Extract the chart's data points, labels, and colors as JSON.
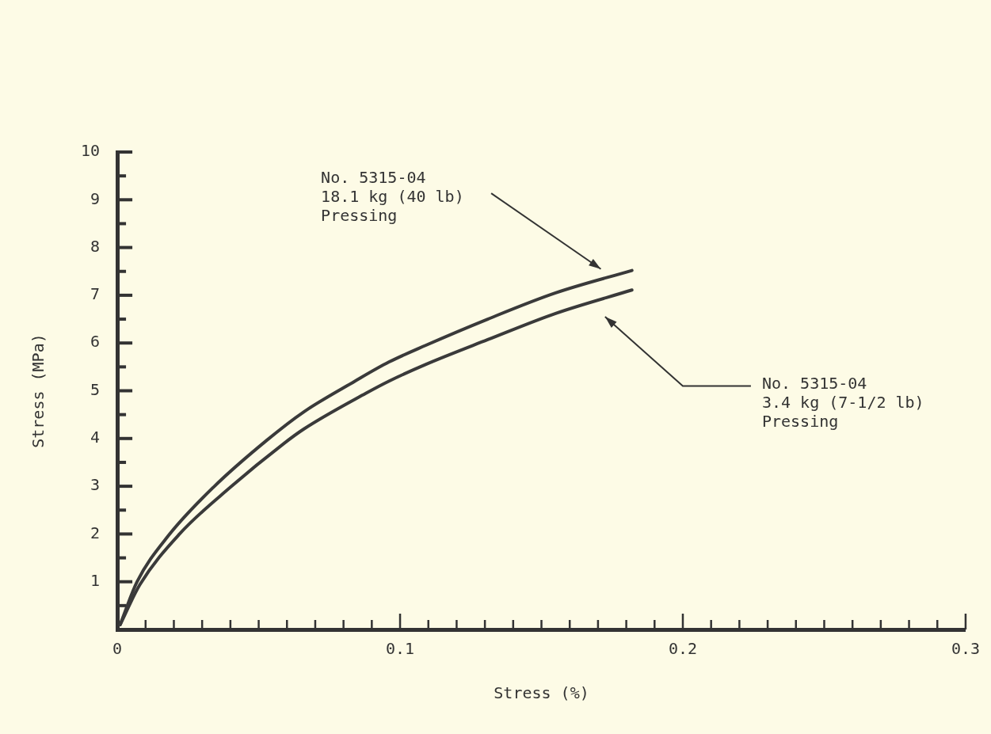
{
  "chart_data": {
    "type": "line",
    "xlabel": "Stress (%)",
    "ylabel": "Stress (MPa)",
    "xlim": [
      0,
      0.3
    ],
    "ylim": [
      0,
      10
    ],
    "xticks": [
      0,
      {
        "value": 0.01,
        "label": null
      },
      {
        "value": 0.02,
        "label": null
      },
      {
        "value": 0.03,
        "label": null
      },
      {
        "value": 0.04,
        "label": null
      },
      {
        "value": 0.05,
        "label": null
      },
      {
        "value": 0.06,
        "label": null
      },
      {
        "value": 0.07,
        "label": null
      },
      {
        "value": 0.08,
        "label": null
      },
      {
        "value": 0.09,
        "label": null
      },
      0.1,
      {
        "value": 0.11,
        "label": null
      },
      {
        "value": 0.12,
        "label": null
      },
      {
        "value": 0.13,
        "label": null
      },
      {
        "value": 0.14,
        "label": null
      },
      {
        "value": 0.15,
        "label": null
      },
      {
        "value": 0.16,
        "label": null
      },
      {
        "value": 0.17,
        "label": null
      },
      {
        "value": 0.18,
        "label": null
      },
      {
        "value": 0.19,
        "label": null
      },
      0.2,
      {
        "value": 0.21,
        "label": null
      },
      {
        "value": 0.22,
        "label": null
      },
      {
        "value": 0.23,
        "label": null
      },
      {
        "value": 0.24,
        "label": null
      },
      {
        "value": 0.25,
        "label": null
      },
      {
        "value": 0.26,
        "label": null
      },
      {
        "value": 0.27,
        "label": null
      },
      {
        "value": 0.28,
        "label": null
      },
      {
        "value": 0.29,
        "label": null
      },
      0.3
    ],
    "yticks": [
      {
        "value": 0.5,
        "label": null
      },
      1,
      {
        "value": 1.5,
        "label": null
      },
      2,
      {
        "value": 2.5,
        "label": null
      },
      3,
      {
        "value": 3.5,
        "label": null
      },
      4,
      {
        "value": 4.5,
        "label": null
      },
      5,
      {
        "value": 5.5,
        "label": null
      },
      6,
      {
        "value": 6.5,
        "label": null
      },
      7,
      {
        "value": 7.5,
        "label": null
      },
      8,
      {
        "value": 8.5,
        "label": null
      },
      9,
      {
        "value": 9.5,
        "label": null
      },
      10
    ],
    "grid": false,
    "legend": false,
    "marker": "none",
    "line_style": "solid",
    "series": [
      {
        "color": "#3a3a3a",
        "x": [
          0.001,
          0.007,
          0.018,
          0.034,
          0.053,
          0.066,
          0.084,
          0.096,
          0.109,
          0.131,
          0.155,
          0.182
        ],
        "values": [
          0.1,
          1.0,
          1.96,
          2.98,
          3.97,
          4.56,
          5.2,
          5.6,
          5.95,
          6.5,
          7.05,
          7.52
        ]
      },
      {
        "color": "#3a3a3a",
        "x": [
          0.001,
          0.008,
          0.022,
          0.04,
          0.059,
          0.066,
          0.088,
          0.096,
          0.109,
          0.131,
          0.155,
          0.182
        ],
        "values": [
          0.1,
          0.94,
          2.0,
          2.98,
          3.9,
          4.2,
          4.95,
          5.2,
          5.55,
          6.07,
          6.62,
          7.11
        ]
      }
    ],
    "annotations": [
      "No. 5315-04\n18.1 kg (40 lb)\nPressing",
      "No. 5315-04\n3.4 kg (7-1/2 lb)\nPressing"
    ]
  }
}
